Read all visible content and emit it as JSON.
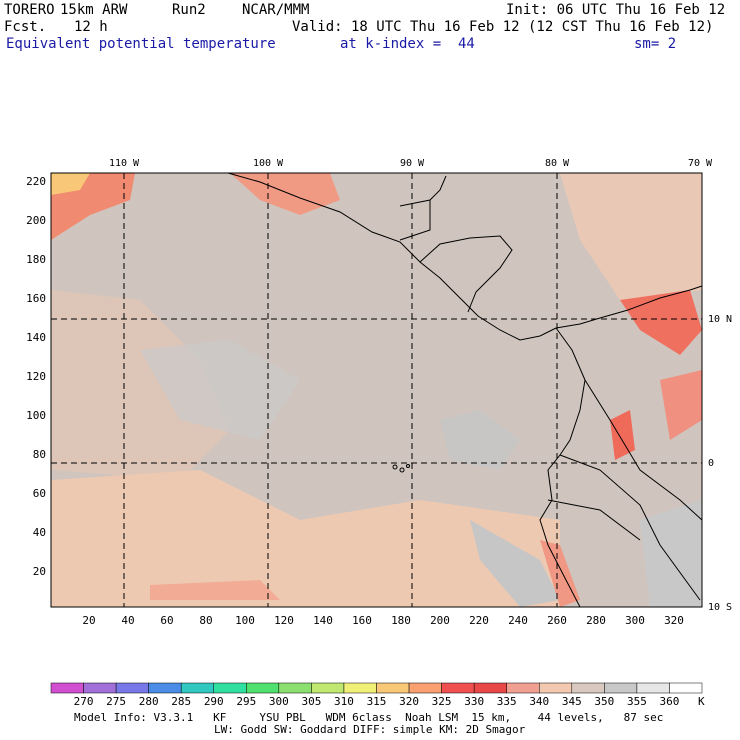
{
  "header": {
    "model_name": "TORERO",
    "resolution": "15km ARW",
    "run": "Run2",
    "org": "NCAR/MMM",
    "init": "Init: 06 UTC Thu 16 Feb 12",
    "fcst_label": "Fcst.",
    "fcst_hours": "12 h",
    "valid": "Valid: 18 UTC Thu 16 Feb 12 (12 CST Thu 16 Feb 12)",
    "field": "Equivalent potential temperature",
    "level": "at k-index =  44",
    "smoothing": "sm= 2"
  },
  "map": {
    "top_lon_labels": [
      "110 W",
      "100 W",
      "90 W",
      "80 W",
      "70 W"
    ],
    "right_lat_labels": [
      "10 N",
      "0",
      "10 S"
    ],
    "x_grid_labels": [
      "20",
      "40",
      "60",
      "80",
      "100",
      "120",
      "140",
      "160",
      "180",
      "200",
      "220",
      "240",
      "260",
      "280",
      "300",
      "320"
    ],
    "y_grid_labels": [
      "220",
      "200",
      "180",
      "160",
      "140",
      "120",
      "100",
      "80",
      "60",
      "40",
      "20"
    ]
  },
  "colorbar": {
    "labels": [
      "270",
      "275",
      "280",
      "285",
      "290",
      "295",
      "300",
      "305",
      "310",
      "315",
      "320",
      "325",
      "330",
      "335",
      "340",
      "345",
      "350",
      "355",
      "360"
    ],
    "units": "K",
    "colors": [
      "#d050d0",
      "#a070d8",
      "#7878e8",
      "#4a8ce6",
      "#30c8c0",
      "#30e0a0",
      "#50e070",
      "#8ce070",
      "#c0e870",
      "#f0f078",
      "#f8c878",
      "#f8a070",
      "#f05050",
      "#e84848",
      "#f0a090",
      "#f2c8b0",
      "#d8c8c0",
      "#c8c8c8",
      "#e6e6e6",
      "#ffffff"
    ]
  },
  "footer": {
    "line1": "Model Info: V3.3.1   KF     YSU PBL   WDM 6class  Noah LSM  15 km,    44 levels,   87 sec",
    "line2": "LW: Godd SW: Goddard DIFF: simple KM: 2D Smagor"
  }
}
